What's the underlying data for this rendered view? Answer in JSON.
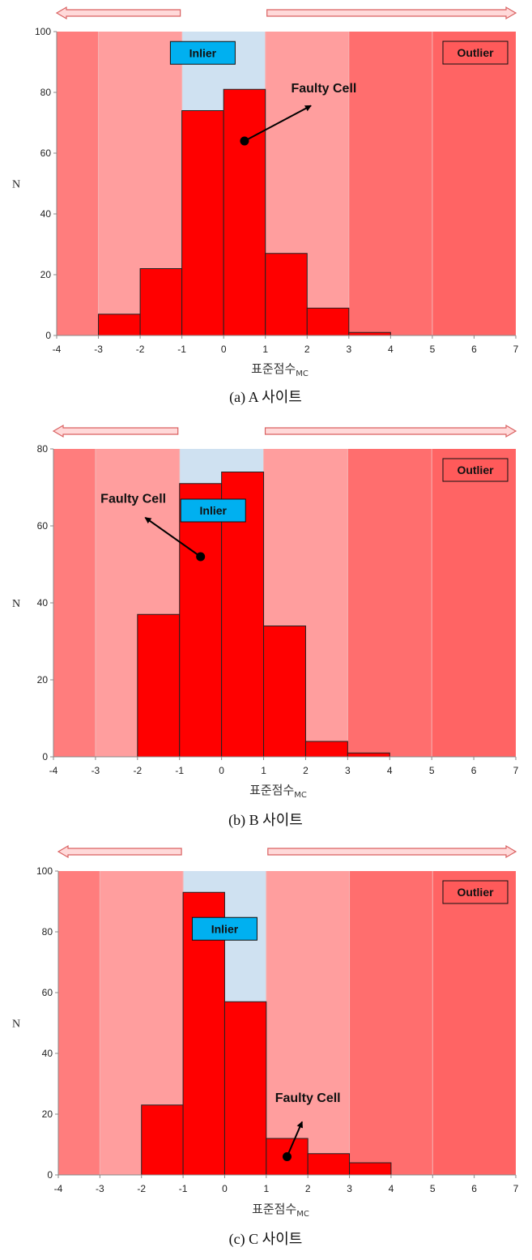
{
  "colors": {
    "zone_far": "#ff7d7d",
    "zone_mid": "#ff9e9e",
    "zone_inlier": "#cfe1f1",
    "zone_outer": "#ff6e6e",
    "zone_outer_far": "#ff6464",
    "bar": "#ff0000",
    "inlier_box": "#00b0f0",
    "outlier_box": "#ff5a5a"
  },
  "chart_data": [
    {
      "type": "bar",
      "caption": "(a)  A  사이트",
      "xlabel": "표준점수",
      "xlabel_sub": "MC",
      "ylabel": "N",
      "xlim": [
        -4,
        7
      ],
      "ylim": [
        0,
        100
      ],
      "xticks": [
        "-4",
        "-3",
        "-2",
        "-1",
        "0",
        "1",
        "2",
        "3",
        "4",
        "5",
        "6",
        "7"
      ],
      "yticks": [
        "0",
        "20",
        "40",
        "60",
        "80",
        "100"
      ],
      "bin_width": 1,
      "bins": [
        {
          "x0": -3,
          "value": 7
        },
        {
          "x0": -2,
          "value": 22
        },
        {
          "x0": -1,
          "value": 74
        },
        {
          "x0": 0,
          "value": 81
        },
        {
          "x0": 1,
          "value": 27
        },
        {
          "x0": 2,
          "value": 9
        },
        {
          "x0": 3,
          "value": 1
        }
      ],
      "inlier_label": "Inlier",
      "outlier_label": "Outlier",
      "faulty_label": "Faulty Cell",
      "faulty_point": {
        "x": 0.5,
        "y": 64
      },
      "inlier_box_pos": {
        "x": -0.5,
        "y": 93
      },
      "faulty_text_pos": {
        "x": 2.4,
        "y": 80
      }
    },
    {
      "type": "bar",
      "caption": "(b)  B  사이트",
      "xlabel": "표준점수",
      "xlabel_sub": "MC",
      "ylabel": "N",
      "xlim": [
        -4,
        7
      ],
      "ylim": [
        0,
        80
      ],
      "xticks": [
        "-4",
        "-3",
        "-2",
        "-1",
        "0",
        "1",
        "2",
        "3",
        "4",
        "5",
        "6",
        "7"
      ],
      "yticks": [
        "0",
        "20",
        "40",
        "60",
        "80"
      ],
      "bin_width": 1,
      "bins": [
        {
          "x0": -2,
          "value": 37
        },
        {
          "x0": -1,
          "value": 71
        },
        {
          "x0": 0,
          "value": 74
        },
        {
          "x0": 1,
          "value": 34
        },
        {
          "x0": 2,
          "value": 4
        },
        {
          "x0": 3,
          "value": 1
        }
      ],
      "inlier_label": "Inlier",
      "outlier_label": "Outlier",
      "faulty_label": "Faulty Cell",
      "faulty_point": {
        "x": -0.5,
        "y": 52
      },
      "inlier_box_pos": {
        "x": -0.2,
        "y": 64
      },
      "faulty_text_pos": {
        "x": -2.1,
        "y": 66
      }
    },
    {
      "type": "bar",
      "caption": "(c)  C  사이트",
      "xlabel": "표준점수",
      "xlabel_sub": "MC",
      "ylabel": "N",
      "xlim": [
        -4,
        7
      ],
      "ylim": [
        0,
        100
      ],
      "xticks": [
        "-4",
        "-3",
        "-2",
        "-1",
        "0",
        "1",
        "2",
        "3",
        "4",
        "5",
        "6",
        "7"
      ],
      "yticks": [
        "0",
        "20",
        "40",
        "60",
        "80",
        "100"
      ],
      "bin_width": 1,
      "bins": [
        {
          "x0": -2,
          "value": 23
        },
        {
          "x0": -1,
          "value": 93
        },
        {
          "x0": 0,
          "value": 57
        },
        {
          "x0": 1,
          "value": 12
        },
        {
          "x0": 2,
          "value": 7
        },
        {
          "x0": 3,
          "value": 4
        }
      ],
      "inlier_label": "Inlier",
      "outlier_label": "Outlier",
      "faulty_label": "Faulty Cell",
      "faulty_point": {
        "x": 1.5,
        "y": 6
      },
      "inlier_box_pos": {
        "x": 0.0,
        "y": 81
      },
      "faulty_text_pos": {
        "x": 2.0,
        "y": 24
      }
    }
  ]
}
